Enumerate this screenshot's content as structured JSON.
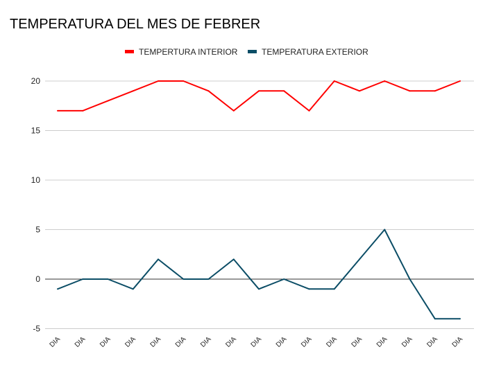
{
  "chart_data": {
    "type": "line",
    "title": "TEMPERATURA DEL MES DE FEBRER",
    "xlabel": "",
    "ylabel": "",
    "categories": [
      "DIA",
      "DIA",
      "DIA",
      "DIA",
      "DIA",
      "DIA",
      "DIA",
      "DIA",
      "DIA",
      "DIA",
      "DIA",
      "DIA",
      "DIA",
      "DIA",
      "DIA",
      "DIA",
      "DIA"
    ],
    "ylim": [
      -5,
      22
    ],
    "yticks": [
      -5,
      0,
      5,
      10,
      15,
      20
    ],
    "grid": true,
    "legend_position": "top",
    "series": [
      {
        "name": "TEMPERTURA INTERIOR",
        "color": "#ff0000",
        "values": [
          17,
          17,
          18,
          19,
          20,
          20,
          19,
          17,
          19,
          19,
          17,
          20,
          19,
          20,
          19,
          19,
          20
        ]
      },
      {
        "name": "TEMPERATURA EXTERIOR",
        "color": "#0b4d66",
        "values": [
          -1,
          0,
          0,
          -1,
          2,
          0,
          0,
          2,
          -1,
          0,
          -1,
          -1,
          2,
          5,
          0,
          -4,
          -4
        ]
      }
    ]
  }
}
